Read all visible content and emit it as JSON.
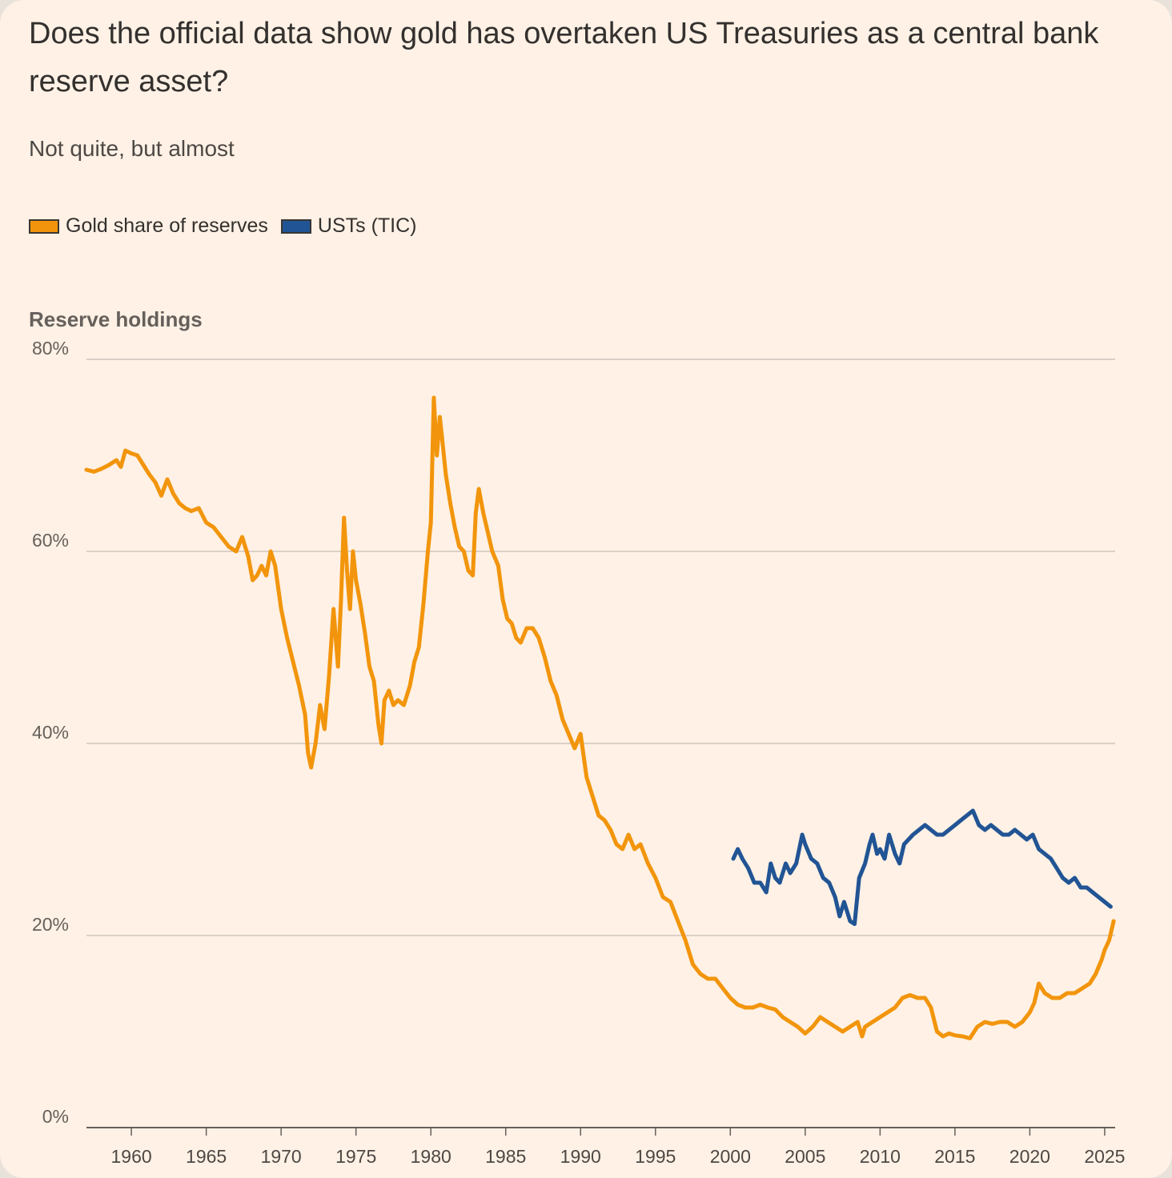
{
  "chart_data": {
    "type": "line",
    "title": "Does the official data show gold has overtaken US Treasuries as a central bank reserve asset?",
    "subtitle": "Not quite, but almost",
    "ylabel": "Reserve holdings",
    "xlabel": "",
    "ylim": [
      0,
      80
    ],
    "xlim": [
      1957,
      2025.7
    ],
    "yticks": [
      0,
      20,
      40,
      60,
      80
    ],
    "ytick_labels": [
      "0%",
      "20%",
      "40%",
      "60%",
      "80%"
    ],
    "xticks": [
      1960,
      1965,
      1970,
      1975,
      1980,
      1985,
      1990,
      1995,
      2000,
      2005,
      2010,
      2015,
      2020,
      2025
    ],
    "xtick_labels": [
      "1960",
      "1965",
      "1970",
      "1975",
      "1980",
      "1985",
      "1990",
      "1995",
      "2000",
      "2005",
      "2010",
      "2015",
      "2020",
      "2025"
    ],
    "grid": true,
    "legend_position": "top-left",
    "series": [
      {
        "name": "Gold share of reserves",
        "color": "#f2950c",
        "x": [
          1957.0,
          1957.5,
          1958.0,
          1958.5,
          1959.0,
          1959.3,
          1959.6,
          1960.0,
          1960.4,
          1960.8,
          1961.2,
          1961.6,
          1962.0,
          1962.4,
          1962.8,
          1963.2,
          1963.6,
          1964.0,
          1964.5,
          1965.0,
          1965.5,
          1966.0,
          1966.5,
          1967.0,
          1967.4,
          1967.8,
          1968.1,
          1968.4,
          1968.7,
          1969.0,
          1969.3,
          1969.6,
          1970.0,
          1970.4,
          1970.8,
          1971.2,
          1971.6,
          1971.8,
          1972.0,
          1972.3,
          1972.6,
          1972.9,
          1973.2,
          1973.5,
          1973.8,
          1974.0,
          1974.2,
          1974.4,
          1974.6,
          1974.8,
          1975.0,
          1975.3,
          1975.6,
          1975.9,
          1976.2,
          1976.5,
          1976.7,
          1976.9,
          1977.2,
          1977.5,
          1977.8,
          1978.2,
          1978.6,
          1978.9,
          1979.2,
          1979.5,
          1979.8,
          1980.0,
          1980.2,
          1980.4,
          1980.6,
          1980.8,
          1981.0,
          1981.3,
          1981.6,
          1981.9,
          1982.2,
          1982.5,
          1982.8,
          1983.0,
          1983.2,
          1983.5,
          1983.8,
          1984.1,
          1984.5,
          1984.8,
          1985.1,
          1985.4,
          1985.7,
          1986.0,
          1986.4,
          1986.8,
          1987.2,
          1987.6,
          1988.0,
          1988.4,
          1988.8,
          1989.2,
          1989.6,
          1990.0,
          1990.4,
          1990.8,
          1991.2,
          1991.6,
          1992.0,
          1992.4,
          1992.8,
          1993.2,
          1993.6,
          1994.0,
          1994.5,
          1995.0,
          1995.5,
          1996.0,
          1996.5,
          1997.0,
          1997.5,
          1998.0,
          1998.5,
          1999.0,
          1999.5,
          2000.0,
          2000.5,
          2001.0,
          2001.5,
          2002.0,
          2002.5,
          2003.0,
          2003.5,
          2004.0,
          2004.5,
          2005.0,
          2005.5,
          2006.0,
          2006.5,
          2007.0,
          2007.5,
          2008.0,
          2008.5,
          2008.8,
          2009.0,
          2009.5,
          2010.0,
          2010.5,
          2011.0,
          2011.5,
          2012.0,
          2012.5,
          2013.0,
          2013.4,
          2013.8,
          2014.2,
          2014.6,
          2015.0,
          2015.5,
          2016.0,
          2016.5,
          2017.0,
          2017.5,
          2018.0,
          2018.5,
          2019.0,
          2019.5,
          2020.0,
          2020.3,
          2020.6,
          2021.0,
          2021.5,
          2022.0,
          2022.5,
          2023.0,
          2023.5,
          2024.0,
          2024.4,
          2024.8,
          2025.0,
          2025.3,
          2025.6
        ],
        "values": [
          68.5,
          68.3,
          68.6,
          69.0,
          69.5,
          68.8,
          70.5,
          70.2,
          70.0,
          69.0,
          68.0,
          67.2,
          65.8,
          67.5,
          66.0,
          65.0,
          64.5,
          64.2,
          64.5,
          63.0,
          62.5,
          61.5,
          60.5,
          60.0,
          61.5,
          59.5,
          57.0,
          57.5,
          58.5,
          57.5,
          60.0,
          58.5,
          54.0,
          51.0,
          48.5,
          46.0,
          43.0,
          39.0,
          37.5,
          40.0,
          44.0,
          41.5,
          47.0,
          54.0,
          48.0,
          55.0,
          63.5,
          58.0,
          54.0,
          60.0,
          57.0,
          54.5,
          51.5,
          48.0,
          46.5,
          42.0,
          40.0,
          44.5,
          45.5,
          44.0,
          44.5,
          44.0,
          46.0,
          48.5,
          50.0,
          54.5,
          60.0,
          63.0,
          76.0,
          70.0,
          74.0,
          71.0,
          68.0,
          65.0,
          62.5,
          60.5,
          60.0,
          58.0,
          57.5,
          64.0,
          66.5,
          64.0,
          62.0,
          60.0,
          58.5,
          55.0,
          53.0,
          52.5,
          51.0,
          50.5,
          52.0,
          52.0,
          51.0,
          49.0,
          46.5,
          45.0,
          42.5,
          41.0,
          39.5,
          41.0,
          36.5,
          34.5,
          32.5,
          32.0,
          31.0,
          29.5,
          29.0,
          30.5,
          29.0,
          29.5,
          27.5,
          26.0,
          24.0,
          23.5,
          21.5,
          19.5,
          17.0,
          16.0,
          15.5,
          15.5,
          14.5,
          13.5,
          12.8,
          12.5,
          12.5,
          12.8,
          12.5,
          12.3,
          11.5,
          11.0,
          10.5,
          9.8,
          10.5,
          11.5,
          11.0,
          10.5,
          10.0,
          10.5,
          11.0,
          9.5,
          10.5,
          11.0,
          11.5,
          12.0,
          12.5,
          13.5,
          13.8,
          13.5,
          13.5,
          12.5,
          10.0,
          9.5,
          9.8,
          9.6,
          9.5,
          9.3,
          10.5,
          11.0,
          10.8,
          11.0,
          11.0,
          10.5,
          11.0,
          12.0,
          13.0,
          15.0,
          14.0,
          13.5,
          13.5,
          14.0,
          14.0,
          14.5,
          15.0,
          16.0,
          17.5,
          18.5,
          19.5,
          21.5
        ]
      },
      {
        "name": "USTs (TIC)",
        "color": "#215494",
        "x": [
          2000.2,
          2000.5,
          2000.8,
          2001.2,
          2001.6,
          2002.0,
          2002.4,
          2002.7,
          2003.0,
          2003.3,
          2003.7,
          2004.0,
          2004.4,
          2004.8,
          2005.0,
          2005.4,
          2005.8,
          2006.2,
          2006.6,
          2007.0,
          2007.3,
          2007.6,
          2008.0,
          2008.3,
          2008.6,
          2009.0,
          2009.3,
          2009.5,
          2009.8,
          2010.0,
          2010.3,
          2010.6,
          2011.0,
          2011.3,
          2011.6,
          2011.9,
          2012.2,
          2012.6,
          2013.0,
          2013.4,
          2013.8,
          2014.2,
          2014.6,
          2015.0,
          2015.4,
          2015.8,
          2016.2,
          2016.6,
          2017.0,
          2017.4,
          2017.8,
          2018.2,
          2018.6,
          2019.0,
          2019.4,
          2019.8,
          2020.2,
          2020.6,
          2021.0,
          2021.4,
          2021.8,
          2022.2,
          2022.6,
          2023.0,
          2023.4,
          2023.8,
          2024.2,
          2024.6,
          2025.0,
          2025.4
        ],
        "values": [
          28.0,
          29.0,
          28.0,
          27.0,
          25.5,
          25.5,
          24.5,
          27.5,
          26.0,
          25.5,
          27.5,
          26.5,
          27.5,
          30.5,
          29.5,
          28.0,
          27.5,
          26.0,
          25.5,
          24.0,
          22.0,
          23.5,
          21.5,
          21.2,
          26.0,
          27.5,
          29.5,
          30.5,
          28.5,
          29.0,
          28.0,
          30.5,
          28.5,
          27.5,
          29.5,
          30.0,
          30.5,
          31.0,
          31.5,
          31.0,
          30.5,
          30.5,
          31.0,
          31.5,
          32.0,
          32.5,
          33.0,
          31.5,
          31.0,
          31.5,
          31.0,
          30.5,
          30.5,
          31.0,
          30.5,
          30.0,
          30.5,
          29.0,
          28.5,
          28.0,
          27.0,
          26.0,
          25.5,
          26.0,
          25.0,
          25.0,
          24.5,
          24.0,
          23.5,
          23.0
        ]
      }
    ]
  },
  "legend": {
    "items": [
      "Gold share of reserves",
      "USTs (TIC)"
    ]
  },
  "colors": {
    "background": "#fff1e5",
    "gold": "#f2950c",
    "ust": "#215494",
    "grid": "#cfc5bd",
    "axis": "#66605c"
  }
}
